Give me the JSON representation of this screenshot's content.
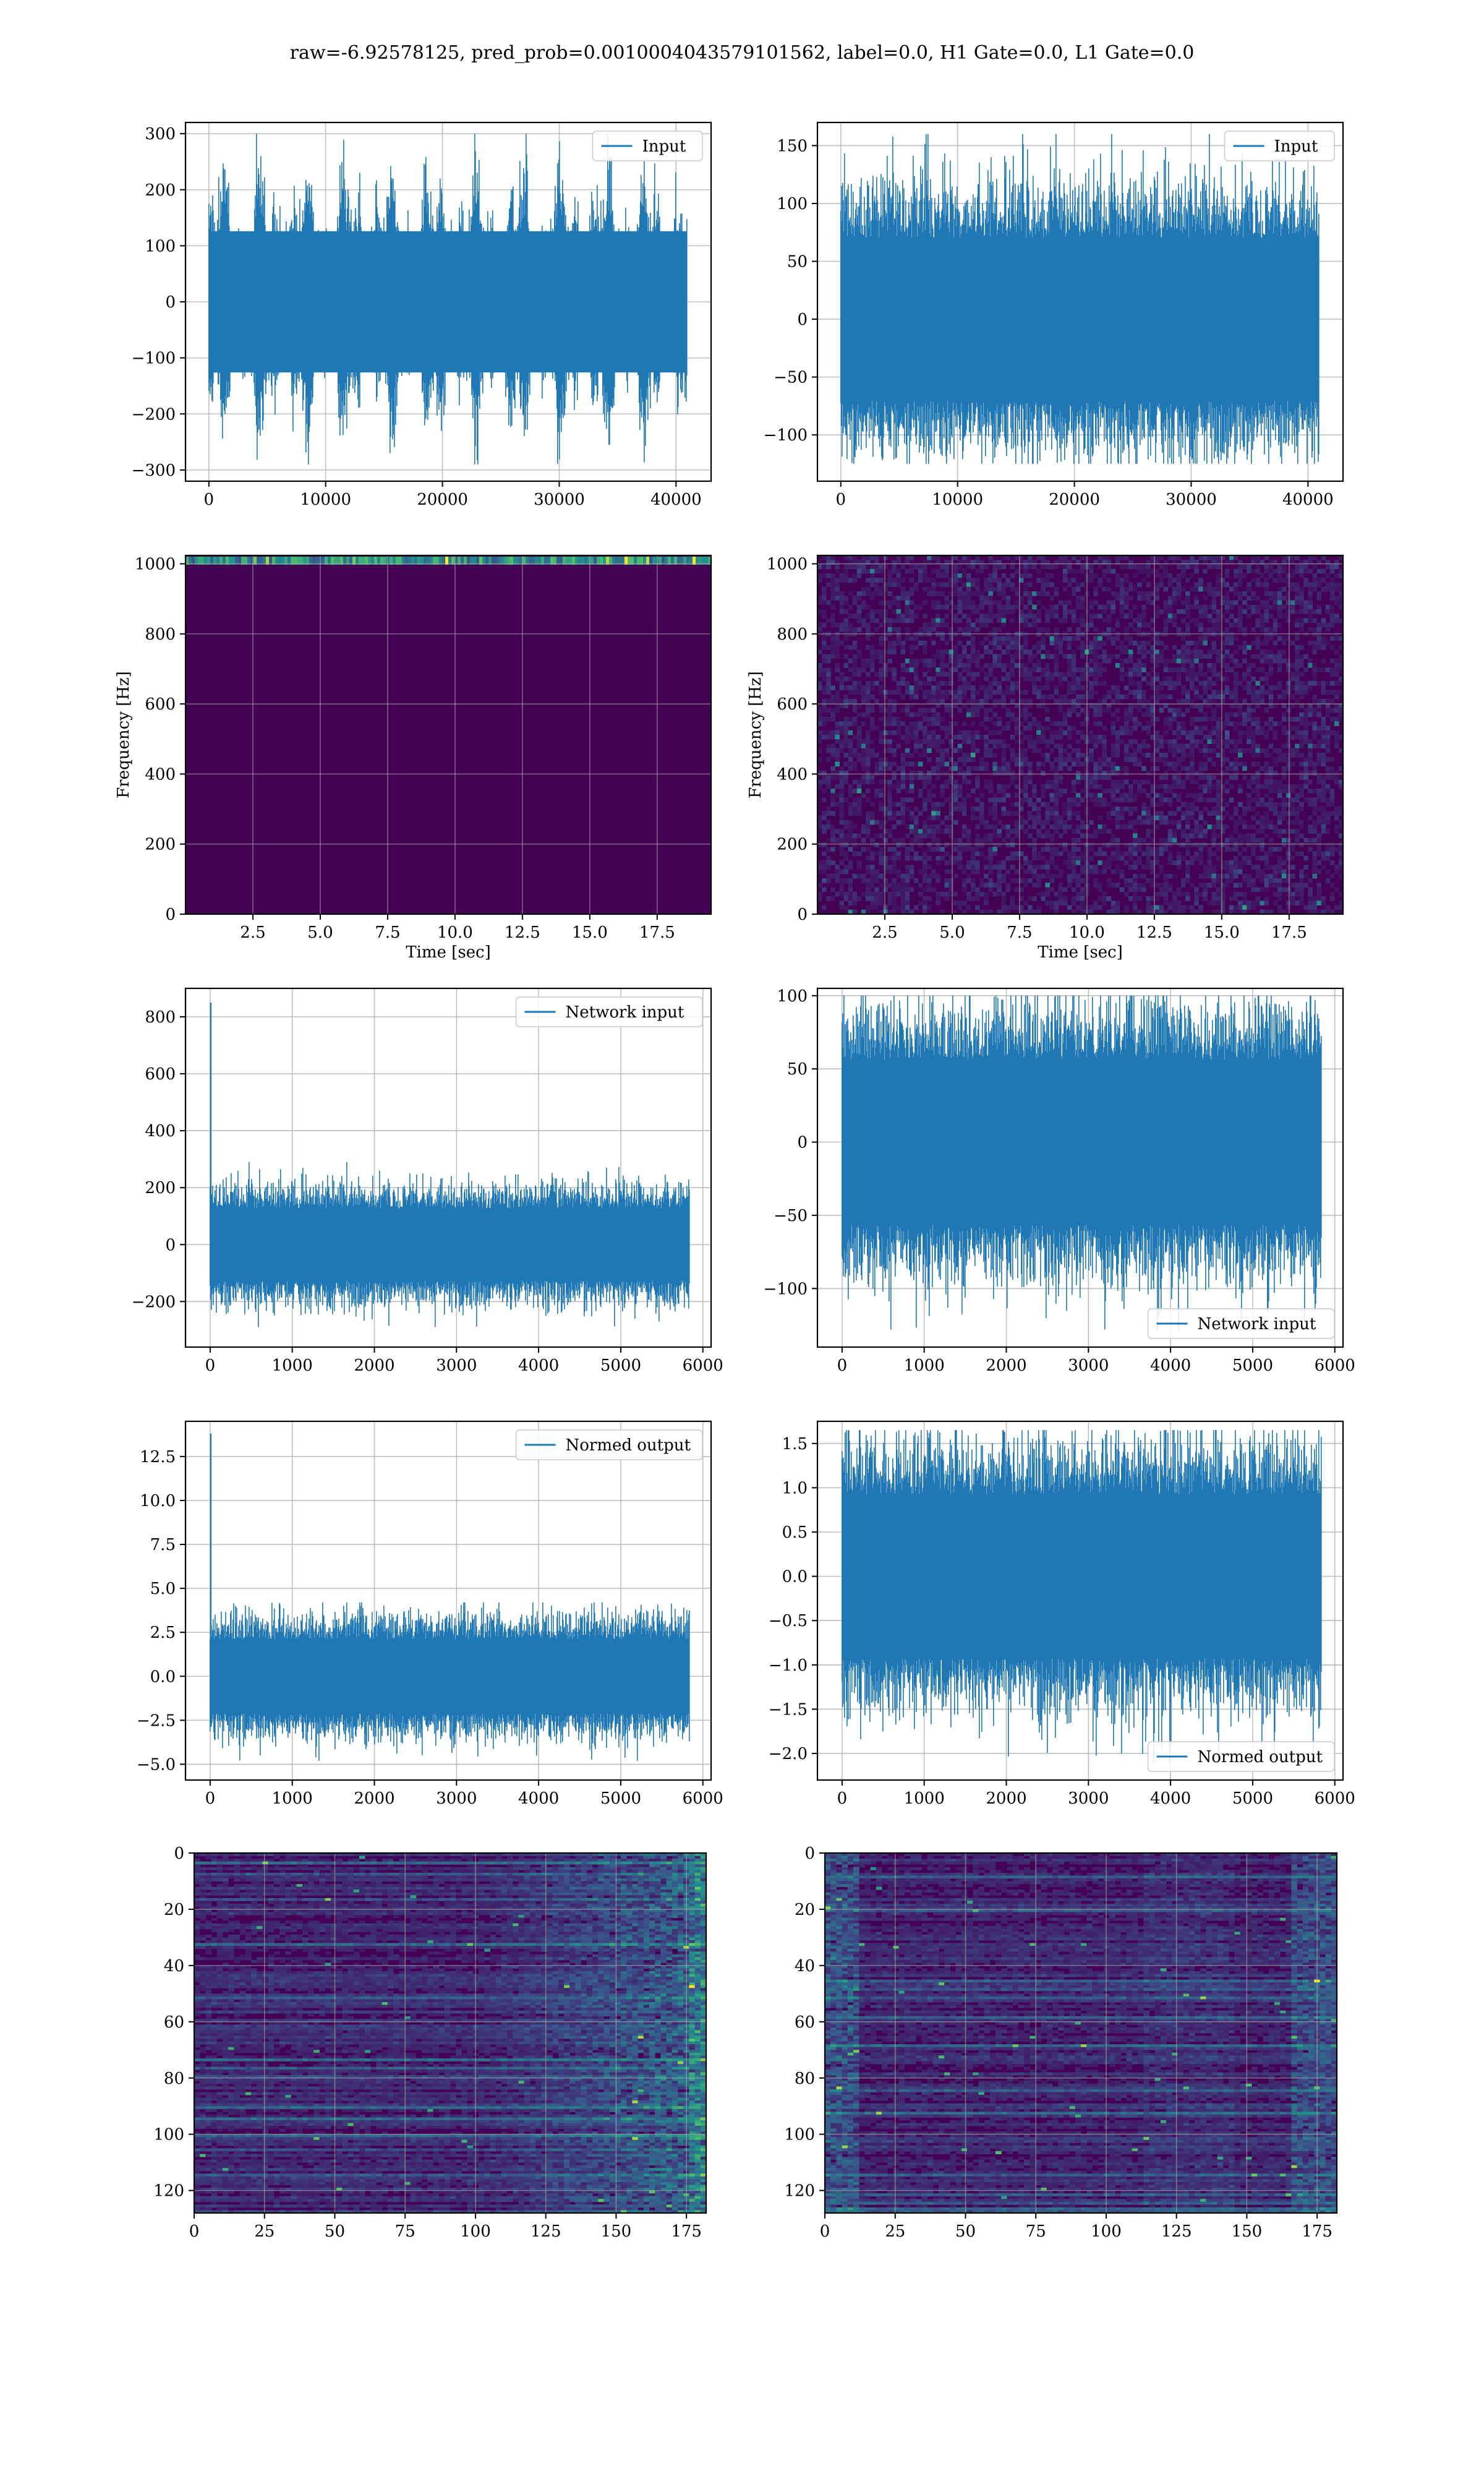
{
  "figure_title": "raw=-6.92578125, pred_prob=0.0010004043579101562, label=0.0, H1 Gate=0.0, L1 Gate=0.0",
  "colors": {
    "line": "#1f77b4",
    "axis": "#000000",
    "grid": "#b0b0b0",
    "viridis_low": "#440154"
  },
  "chart_data": [
    {
      "id": "r1c1",
      "type": "line",
      "series": [
        {
          "name": "Input",
          "n": 40960,
          "amplitude_range": [
            -290,
            300
          ],
          "envelope": "bursty"
        }
      ],
      "xlim": [
        -2000,
        43000
      ],
      "ylim": [
        -320,
        320
      ],
      "xticks": [
        0,
        10000,
        20000,
        30000,
        40000
      ],
      "yticks": [
        -300,
        -200,
        -100,
        0,
        100,
        200,
        300
      ],
      "legend": "upper right",
      "grid": true
    },
    {
      "id": "r1c2",
      "type": "line",
      "series": [
        {
          "name": "Input",
          "n": 40960,
          "amplitude_range": [
            -125,
            160
          ],
          "envelope": "flat"
        }
      ],
      "xlim": [
        -2000,
        43000
      ],
      "ylim": [
        -140,
        170
      ],
      "xticks": [
        0,
        10000,
        20000,
        30000,
        40000
      ],
      "yticks": [
        -100,
        -50,
        0,
        50,
        100,
        150
      ],
      "legend": "upper right",
      "grid": true
    },
    {
      "id": "r2c1",
      "type": "heatmap",
      "xlabel": "Time [sec]",
      "ylabel": "Frequency [Hz]",
      "xlim": [
        0,
        19.5
      ],
      "ylim": [
        0,
        1024
      ],
      "xticks": [
        2.5,
        5.0,
        7.5,
        10.0,
        12.5,
        15.0,
        17.5
      ],
      "yticks": [
        0,
        200,
        400,
        600,
        800,
        1000
      ],
      "colormap": "viridis",
      "pattern": "dark with energy only near top band",
      "grid": true
    },
    {
      "id": "r2c2",
      "type": "heatmap",
      "xlabel": "Time [sec]",
      "ylabel": "Frequency [Hz]",
      "xlim": [
        0,
        19.5
      ],
      "ylim": [
        0,
        1024
      ],
      "xticks": [
        2.5,
        5.0,
        7.5,
        10.0,
        12.5,
        15.0,
        17.5
      ],
      "yticks": [
        0,
        200,
        400,
        600,
        800,
        1000
      ],
      "colormap": "viridis",
      "pattern": "speckled noise",
      "grid": true
    },
    {
      "id": "r3c1",
      "type": "line",
      "series": [
        {
          "name": "Network input",
          "n": 5840,
          "amplitude_range": [
            -290,
            290
          ],
          "spike": 850
        }
      ],
      "xlim": [
        -300,
        6100
      ],
      "ylim": [
        -360,
        900
      ],
      "xticks": [
        0,
        1000,
        2000,
        3000,
        4000,
        5000,
        6000
      ],
      "yticks": [
        -200,
        0,
        200,
        400,
        600,
        800
      ],
      "legend": "upper right",
      "grid": true
    },
    {
      "id": "r3c2",
      "type": "line",
      "series": [
        {
          "name": "Network input",
          "n": 5840,
          "amplitude_range": [
            -128,
            100
          ]
        }
      ],
      "xlim": [
        -300,
        6100
      ],
      "ylim": [
        -140,
        105
      ],
      "xticks": [
        0,
        1000,
        2000,
        3000,
        4000,
        5000,
        6000
      ],
      "yticks": [
        -100,
        -50,
        0,
        50,
        100
      ],
      "legend": "lower right",
      "grid": true
    },
    {
      "id": "r4c1",
      "type": "line",
      "series": [
        {
          "name": "Normed output",
          "n": 5840,
          "amplitude_range": [
            -4.8,
            4.2
          ],
          "spike": 13.8
        }
      ],
      "xlim": [
        -300,
        6100
      ],
      "ylim": [
        -5.9,
        14.5
      ],
      "xticks": [
        0,
        1000,
        2000,
        3000,
        4000,
        5000,
        6000
      ],
      "yticks": [
        -5.0,
        -2.5,
        0.0,
        2.5,
        5.0,
        7.5,
        10.0,
        12.5
      ],
      "legend": "upper right",
      "grid": true
    },
    {
      "id": "r4c2",
      "type": "line",
      "series": [
        {
          "name": "Normed output",
          "n": 5840,
          "amplitude_range": [
            -2.1,
            1.65
          ]
        }
      ],
      "xlim": [
        -300,
        6100
      ],
      "ylim": [
        -2.3,
        1.75
      ],
      "xticks": [
        0,
        1000,
        2000,
        3000,
        4000,
        5000,
        6000
      ],
      "yticks": [
        -2.0,
        -1.5,
        -1.0,
        -0.5,
        0.0,
        0.5,
        1.0,
        1.5
      ],
      "legend": "lower right",
      "grid": true
    },
    {
      "id": "r5c1",
      "type": "heatmap",
      "xlim": [
        0,
        182
      ],
      "ylim": [
        128,
        0
      ],
      "xticks": [
        0,
        25,
        50,
        75,
        100,
        125,
        150,
        175
      ],
      "yticks": [
        0,
        20,
        40,
        60,
        80,
        100,
        120
      ],
      "colormap": "viridis",
      "pattern": "horizontal streaks, brighter toward right",
      "grid": true
    },
    {
      "id": "r5c2",
      "type": "heatmap",
      "xlim": [
        0,
        182
      ],
      "ylim": [
        128,
        0
      ],
      "xticks": [
        0,
        25,
        50,
        75,
        100,
        125,
        150,
        175
      ],
      "yticks": [
        0,
        20,
        40,
        60,
        80,
        100,
        120
      ],
      "colormap": "viridis",
      "pattern": "horizontal streaks, brighter at left and right edges",
      "grid": true
    }
  ]
}
